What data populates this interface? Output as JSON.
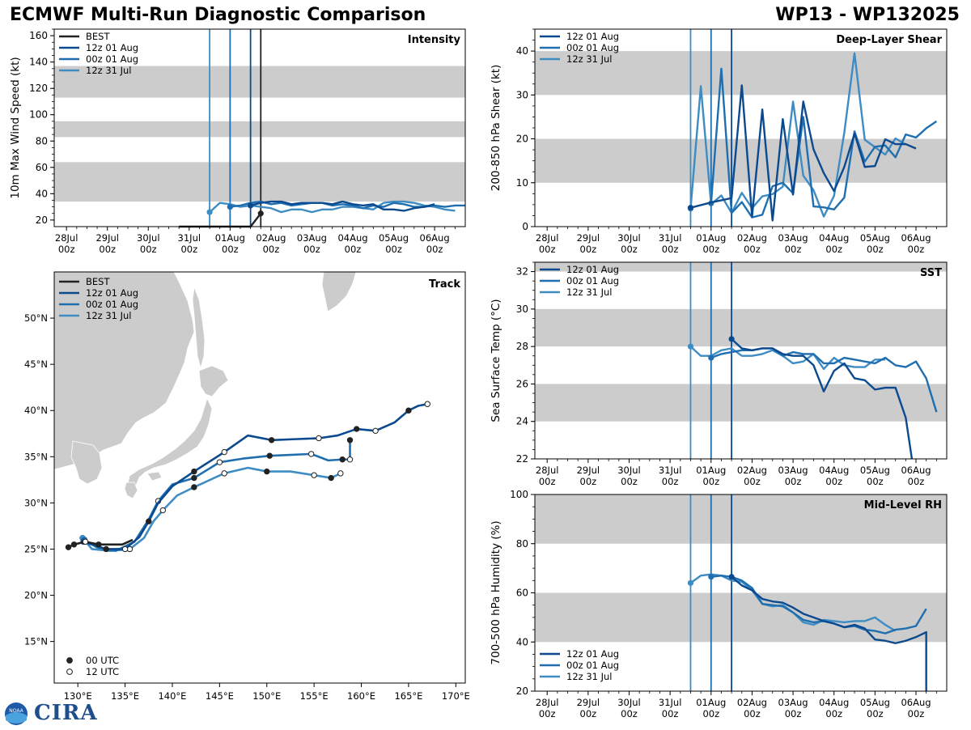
{
  "header": {
    "left": "ECMWF Multi-Run Diagnostic Comparison",
    "right": "WP13 - WP132025"
  },
  "logo": {
    "agency": "NOAA",
    "name": "CIRA"
  },
  "colors": {
    "best": "#222222",
    "run12z01": "#0b4a8f",
    "run00z01": "#1f6fb0",
    "run12z31": "#3d8cc4",
    "band": "#cccccc"
  },
  "time_axis": {
    "ticks": [
      {
        "day": "28Jul",
        "hour": "00z"
      },
      {
        "day": "29Jul",
        "hour": "00z"
      },
      {
        "day": "30Jul",
        "hour": "00z"
      },
      {
        "day": "31Jul",
        "hour": "00z"
      },
      {
        "day": "01Aug",
        "hour": "00z"
      },
      {
        "day": "02Aug",
        "hour": "00z"
      },
      {
        "day": "03Aug",
        "hour": "00z"
      },
      {
        "day": "04Aug",
        "hour": "00z"
      },
      {
        "day": "05Aug",
        "hour": "00z"
      },
      {
        "day": "06Aug",
        "hour": "00z"
      }
    ],
    "range_days": [
      -0.3,
      9.75
    ],
    "note": "x values below are days since 28Jul 00z"
  },
  "chart_data": [
    {
      "id": "intensity",
      "type": "line",
      "title": "Intensity",
      "xlabel": "",
      "ylabel": "10m Max Wind Speed (kt)",
      "ylim": [
        15,
        165
      ],
      "yticks": [
        20,
        40,
        60,
        80,
        100,
        120,
        140,
        160
      ],
      "bands": [
        [
          34,
          64
        ],
        [
          83,
          95
        ],
        [
          113,
          137
        ]
      ],
      "init_lines": [
        3.5,
        4.0,
        4.5,
        4.75
      ],
      "legend": [
        "BEST",
        "12z 01 Aug",
        "00z 01 Aug",
        "12z 31 Jul"
      ],
      "series": [
        {
          "name": "BEST",
          "x": [
            2.75,
            3.0,
            3.25,
            3.5,
            3.75,
            4.0,
            4.25,
            4.5,
            4.75
          ],
          "values": [
            15,
            15,
            15,
            15,
            15,
            15,
            15,
            15,
            25
          ],
          "marker_last": true
        },
        {
          "name": "12z 01 Aug",
          "x": [
            4.5,
            4.75,
            5.0,
            5.25,
            5.5,
            5.75,
            6.0,
            6.25,
            6.5,
            6.75,
            7.0,
            7.25,
            7.5,
            7.75,
            8.0,
            8.25,
            8.5,
            8.75,
            9.0
          ],
          "values": [
            31,
            33,
            34,
            34,
            32,
            33,
            33,
            33,
            32,
            34,
            32,
            31,
            32,
            28,
            28,
            27,
            29,
            30,
            32
          ]
        },
        {
          "name": "00z 01 Aug",
          "x": [
            4.0,
            4.25,
            4.5,
            4.75,
            5.0,
            5.25,
            5.5,
            5.75,
            6.0,
            6.25,
            6.5,
            6.75,
            7.0,
            7.25,
            7.5,
            7.75,
            8.0,
            8.25,
            8.5,
            8.75,
            9.0,
            9.25,
            9.5,
            9.75
          ],
          "values": [
            30,
            31,
            33,
            34,
            32,
            33,
            31,
            32,
            33,
            33,
            31,
            32,
            31,
            29,
            31,
            30,
            33,
            32,
            30,
            30,
            31,
            30,
            31,
            31
          ]
        },
        {
          "name": "12z 31 Jul",
          "x": [
            3.5,
            3.75,
            4.0,
            4.25,
            4.5,
            4.75,
            5.0,
            5.25,
            5.5,
            5.75,
            6.0,
            6.25,
            6.5,
            6.75,
            7.0,
            7.25,
            7.5,
            7.75,
            8.0,
            8.25,
            8.5,
            8.75,
            9.0,
            9.25,
            9.5
          ],
          "values": [
            26,
            33,
            32,
            30,
            31,
            30,
            29,
            26,
            28,
            28,
            26,
            28,
            28,
            30,
            30,
            29,
            28,
            33,
            34,
            34,
            33,
            31,
            30,
            28,
            27
          ]
        }
      ]
    },
    {
      "id": "shear",
      "type": "line",
      "title": "Deep-Layer Shear",
      "xlabel": "",
      "ylabel": "200-850 hPa Shear (kt)",
      "ylim": [
        0,
        45
      ],
      "yticks": [
        0,
        10,
        20,
        30,
        40
      ],
      "bands": [
        [
          10,
          20
        ],
        [
          30,
          40
        ]
      ],
      "init_lines": [
        3.5,
        4.0,
        4.5
      ],
      "legend": [
        "12z 01 Aug",
        "00z 01 Aug",
        "12z 31 Jul"
      ],
      "series": [
        {
          "name": "12z 01 Aug",
          "x": [
            3.5,
            4.0,
            4.5,
            4.75,
            5.0,
            5.25,
            5.5,
            5.75,
            6.0,
            6.25,
            6.5,
            6.75,
            7.0,
            7.25,
            7.5,
            7.75,
            8.0,
            8.25,
            8.5,
            8.75,
            9.0,
            9.25,
            9.5
          ],
          "values": [
            4.3,
            5.5,
            6.5,
            32.2,
            2.3,
            26.7,
            1.4,
            24.5,
            7.3,
            28.5,
            17.6,
            12.2,
            8.1,
            13.6,
            21.2,
            13.6,
            13.8,
            19.9,
            18.8,
            18.8,
            17.8,
            null,
            null
          ]
        },
        {
          "name": "00z 01 Aug",
          "x": [
            4.0,
            4.25,
            4.5,
            4.75,
            5.0,
            5.25,
            5.5,
            5.75,
            6.0,
            6.25,
            6.5,
            6.75,
            7.0,
            7.25,
            7.5,
            7.75,
            8.0,
            8.25,
            8.5,
            8.75,
            9.0,
            9.25,
            9.5
          ],
          "values": [
            5.3,
            36.0,
            3.1,
            5.6,
            2.1,
            2.7,
            9.2,
            10.0,
            7.6,
            25.0,
            4.6,
            4.4,
            3.9,
            6.6,
            21.7,
            14.8,
            18.2,
            18.5,
            15.8,
            21.0,
            20.3,
            22.4,
            24.0
          ]
        },
        {
          "name": "12z 31 Jul",
          "x": [
            3.5,
            3.75,
            4.0,
            4.25,
            4.5,
            4.75,
            5.0,
            5.25,
            5.5,
            5.75,
            6.0,
            6.25,
            6.5,
            6.75,
            7.0,
            7.25,
            7.5,
            7.75,
            8.0,
            8.25,
            8.5,
            8.75
          ],
          "values": [
            4.1,
            32.0,
            5.1,
            7.1,
            3.1,
            7.7,
            4.2,
            6.9,
            7.4,
            9.1,
            28.5,
            11.6,
            8.3,
            2.3,
            7.0,
            21.4,
            39.5,
            19.8,
            18.1,
            16.4,
            20.1,
            18.7
          ]
        }
      ]
    },
    {
      "id": "sst",
      "type": "line",
      "title": "SST",
      "xlabel": "",
      "ylabel": "Sea Surface Temp (°C)",
      "ylim": [
        22,
        32.5
      ],
      "yticks": [
        22,
        24,
        26,
        28,
        30,
        32
      ],
      "bands": [
        [
          24,
          26
        ],
        [
          28,
          30
        ],
        [
          32,
          33
        ]
      ],
      "init_lines": [
        3.5,
        4.0,
        4.5
      ],
      "legend": [
        "12z 01 Aug",
        "00z 01 Aug",
        "12z 31 Jul"
      ],
      "series": [
        {
          "name": "12z 01 Aug",
          "x": [
            4.5,
            4.75,
            5.0,
            5.25,
            5.5,
            5.75,
            6.0,
            6.25,
            6.5,
            6.75,
            7.0,
            7.25,
            7.5,
            7.75,
            8.0,
            8.25,
            8.5,
            8.75,
            8.9
          ],
          "values": [
            28.4,
            27.9,
            27.8,
            27.9,
            27.9,
            27.6,
            27.5,
            27.5,
            27.0,
            25.6,
            26.7,
            27.1,
            26.3,
            26.2,
            25.7,
            25.8,
            25.8,
            24.2,
            22.0
          ]
        },
        {
          "name": "00z 01 Aug",
          "x": [
            4.0,
            4.25,
            4.5,
            4.75,
            5.0,
            5.25,
            5.5,
            5.75,
            6.0,
            6.25,
            6.5,
            6.75,
            7.0,
            7.25,
            7.5,
            7.75,
            8.0,
            8.25,
            8.5,
            8.75,
            9.0,
            9.25,
            9.5
          ],
          "values": [
            27.4,
            27.6,
            27.7,
            27.8,
            27.8,
            27.9,
            27.9,
            27.5,
            27.7,
            27.6,
            27.6,
            27.1,
            27.1,
            27.4,
            27.3,
            27.2,
            27.1,
            27.4,
            27.0,
            26.9,
            27.2,
            26.3,
            24.5
          ]
        },
        {
          "name": "12z 31 Jul",
          "x": [
            3.5,
            3.75,
            4.0,
            4.25,
            4.5,
            4.75,
            5.0,
            5.25,
            5.5,
            5.75,
            6.0,
            6.25,
            6.5,
            6.75,
            7.0,
            7.25,
            7.5,
            7.75,
            8.0,
            8.25
          ],
          "values": [
            28.0,
            27.5,
            27.5,
            27.8,
            27.9,
            27.5,
            27.5,
            27.6,
            27.8,
            27.5,
            27.1,
            27.2,
            27.6,
            26.8,
            27.4,
            27.0,
            26.9,
            26.9,
            27.3,
            27.3
          ]
        }
      ]
    },
    {
      "id": "rh",
      "type": "line",
      "title": "Mid-Level RH",
      "xlabel": "",
      "ylabel": "700-500 hPa Humidity (%)",
      "ylim": [
        20,
        100
      ],
      "yticks": [
        20,
        40,
        60,
        80,
        100
      ],
      "bands": [
        [
          40,
          60
        ],
        [
          80,
          100
        ]
      ],
      "init_lines": [
        3.5,
        4.0,
        4.5
      ],
      "legend": [
        "12z 01 Aug",
        "00z 01 Aug",
        "12z 31 Jul"
      ],
      "series": [
        {
          "name": "12z 01 Aug",
          "x": [
            4.5,
            4.75,
            5.0,
            5.25,
            5.5,
            5.75,
            6.0,
            6.25,
            6.5,
            6.75,
            7.0,
            7.25,
            7.5,
            7.75,
            8.0,
            8.25,
            8.5,
            8.75,
            9.0,
            9.25,
            9.25
          ],
          "values": [
            66.5,
            63,
            61,
            57.5,
            56.5,
            56,
            54,
            51.5,
            50,
            48.5,
            47.5,
            46,
            47,
            45.5,
            41,
            40.5,
            39.5,
            40.5,
            42,
            44,
            20
          ]
        },
        {
          "name": "00z 01 Aug",
          "x": [
            4.0,
            4.25,
            4.5,
            4.75,
            5.0,
            5.25,
            5.5,
            5.75,
            6.0,
            6.25,
            6.5,
            6.75,
            7.0,
            7.25,
            7.5,
            7.75,
            8.0,
            8.25,
            8.5,
            8.75,
            9.0,
            9.25,
            9.5
          ],
          "values": [
            66.5,
            67,
            66.5,
            65,
            62,
            55.5,
            55,
            54.5,
            52,
            49,
            48,
            48.5,
            47.5,
            46,
            46.5,
            45,
            44.5,
            43.5,
            45,
            45.5,
            46.5,
            53.5,
            null
          ]
        },
        {
          "name": "12z 31 Jul",
          "x": [
            3.5,
            3.75,
            4.0,
            4.25,
            4.5,
            4.75,
            5.0,
            5.25,
            5.5,
            5.75,
            6.0,
            6.25,
            6.5,
            6.75,
            7.0,
            7.25,
            7.5,
            7.75,
            8.0,
            8.25,
            8.5
          ],
          "values": [
            64,
            67,
            67.5,
            67,
            65,
            64.5,
            61,
            55.5,
            54.5,
            55,
            52,
            48,
            47,
            49,
            48.5,
            48,
            48.5,
            48.5,
            50,
            47,
            44.5
          ]
        }
      ]
    },
    {
      "id": "track",
      "type": "scatter",
      "title": "Track",
      "xlabel": "",
      "ylabel": "",
      "xlim": [
        127.5,
        171
      ],
      "ylim": [
        10.5,
        55
      ],
      "xticks": [
        130,
        135,
        140,
        145,
        150,
        155,
        160,
        165,
        170
      ],
      "xtick_labels": [
        "130°E",
        "135°E",
        "140°E",
        "145°E",
        "150°E",
        "155°E",
        "160°E",
        "165°E",
        "170°E"
      ],
      "yticks": [
        15,
        20,
        25,
        30,
        35,
        40,
        45,
        50
      ],
      "ytick_labels": [
        "15°N",
        "20°N",
        "25°N",
        "30°N",
        "35°N",
        "40°N",
        "45°N",
        "50°N"
      ],
      "legend": [
        "BEST",
        "12z 01 Aug",
        "00z 01 Aug",
        "12z 31 Jul"
      ],
      "marker_legend": [
        "00 UTC",
        "12 UTC"
      ],
      "series": [
        {
          "name": "BEST",
          "lon": [
            129.0,
            129.6,
            130.8,
            132.2,
            133.5,
            134.7,
            135.8
          ],
          "lat": [
            25.2,
            25.5,
            25.8,
            25.5,
            25.5,
            25.5,
            26.0
          ],
          "markers": [
            "00",
            "00",
            "12",
            "00",
            null,
            null,
            null
          ]
        },
        {
          "name": "12z 01 Aug",
          "lon": [
            130.6,
            131.5,
            133.0,
            135.0,
            136.5,
            137.5,
            138.5,
            140.0,
            142.3,
            145.5,
            148.0,
            150.5,
            153.0,
            155.5,
            157.5,
            159.5,
            161.5,
            163.5,
            165.0,
            166.0,
            167.0
          ],
          "lat": [
            25.8,
            25.5,
            25.0,
            25.0,
            26.3,
            28.0,
            30.0,
            31.8,
            33.4,
            35.5,
            37.3,
            36.8,
            36.9,
            37.0,
            37.3,
            38.0,
            37.8,
            38.7,
            40.0,
            40.5,
            40.7
          ],
          "markers": [
            "12",
            null,
            "00",
            "12",
            null,
            "00",
            null,
            null,
            "00",
            "12",
            null,
            "00",
            null,
            "12",
            null,
            "00",
            "12",
            null,
            "00",
            null,
            "12"
          ]
        },
        {
          "name": "00z 01 Aug",
          "lon": [
            130.7,
            132.0,
            134.0,
            136.0,
            137.5,
            138.5,
            140.0,
            142.3,
            145.0,
            147.5,
            150.3,
            152.5,
            154.7,
            156.5,
            158.0,
            158.8,
            158.8
          ],
          "lat": [
            26.0,
            25.2,
            24.8,
            25.8,
            28.2,
            30.2,
            32.0,
            32.7,
            34.4,
            34.8,
            35.1,
            35.2,
            35.3,
            34.6,
            34.7,
            34.7,
            36.8
          ],
          "markers": [
            "12",
            null,
            null,
            null,
            null,
            "12",
            null,
            "00",
            "12",
            null,
            "00",
            null,
            "12",
            null,
            "00",
            "12",
            "00"
          ]
        },
        {
          "name": "12z 31 Jul",
          "lon": [
            130.5,
            131.5,
            133.5,
            135.5,
            137.0,
            138.0,
            139.0,
            140.5,
            142.3,
            145.5,
            148.0,
            150.0,
            152.5,
            155.0,
            156.8,
            157.8
          ],
          "lat": [
            26.2,
            25.0,
            24.8,
            25.0,
            26.2,
            28.0,
            29.2,
            30.8,
            31.7,
            33.2,
            33.8,
            33.4,
            33.4,
            33.0,
            32.7,
            33.2
          ],
          "markers": [
            "12",
            null,
            null,
            "12",
            null,
            null,
            "12",
            null,
            "00",
            "12",
            null,
            "00",
            null,
            "12",
            "00",
            "12"
          ]
        }
      ]
    }
  ]
}
